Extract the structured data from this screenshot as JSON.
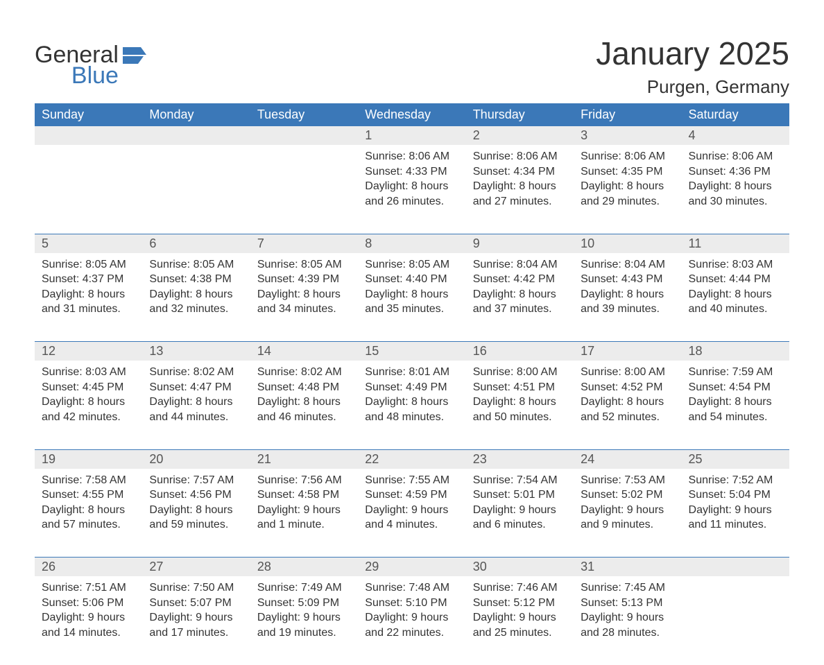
{
  "brand": {
    "line1": "General",
    "line2": "Blue"
  },
  "title": "January 2025",
  "location": "Purgen, Germany",
  "colors": {
    "header_bg": "#3b78b8",
    "header_text": "#ffffff",
    "daynum_bg": "#ececec",
    "daynum_text": "#555555",
    "body_text": "#333333",
    "rule": "#3b78b8",
    "page_bg": "#ffffff"
  },
  "fonts": {
    "title_size_pt": 34,
    "location_size_pt": 20,
    "header_size_pt": 14,
    "daynum_size_pt": 14,
    "body_size_pt": 12
  },
  "weekdays": [
    "Sunday",
    "Monday",
    "Tuesday",
    "Wednesday",
    "Thursday",
    "Friday",
    "Saturday"
  ],
  "weeks": [
    [
      null,
      null,
      null,
      {
        "n": "1",
        "sunrise": "Sunrise: 8:06 AM",
        "sunset": "Sunset: 4:33 PM",
        "d1": "Daylight: 8 hours",
        "d2": "and 26 minutes."
      },
      {
        "n": "2",
        "sunrise": "Sunrise: 8:06 AM",
        "sunset": "Sunset: 4:34 PM",
        "d1": "Daylight: 8 hours",
        "d2": "and 27 minutes."
      },
      {
        "n": "3",
        "sunrise": "Sunrise: 8:06 AM",
        "sunset": "Sunset: 4:35 PM",
        "d1": "Daylight: 8 hours",
        "d2": "and 29 minutes."
      },
      {
        "n": "4",
        "sunrise": "Sunrise: 8:06 AM",
        "sunset": "Sunset: 4:36 PM",
        "d1": "Daylight: 8 hours",
        "d2": "and 30 minutes."
      }
    ],
    [
      {
        "n": "5",
        "sunrise": "Sunrise: 8:05 AM",
        "sunset": "Sunset: 4:37 PM",
        "d1": "Daylight: 8 hours",
        "d2": "and 31 minutes."
      },
      {
        "n": "6",
        "sunrise": "Sunrise: 8:05 AM",
        "sunset": "Sunset: 4:38 PM",
        "d1": "Daylight: 8 hours",
        "d2": "and 32 minutes."
      },
      {
        "n": "7",
        "sunrise": "Sunrise: 8:05 AM",
        "sunset": "Sunset: 4:39 PM",
        "d1": "Daylight: 8 hours",
        "d2": "and 34 minutes."
      },
      {
        "n": "8",
        "sunrise": "Sunrise: 8:05 AM",
        "sunset": "Sunset: 4:40 PM",
        "d1": "Daylight: 8 hours",
        "d2": "and 35 minutes."
      },
      {
        "n": "9",
        "sunrise": "Sunrise: 8:04 AM",
        "sunset": "Sunset: 4:42 PM",
        "d1": "Daylight: 8 hours",
        "d2": "and 37 minutes."
      },
      {
        "n": "10",
        "sunrise": "Sunrise: 8:04 AM",
        "sunset": "Sunset: 4:43 PM",
        "d1": "Daylight: 8 hours",
        "d2": "and 39 minutes."
      },
      {
        "n": "11",
        "sunrise": "Sunrise: 8:03 AM",
        "sunset": "Sunset: 4:44 PM",
        "d1": "Daylight: 8 hours",
        "d2": "and 40 minutes."
      }
    ],
    [
      {
        "n": "12",
        "sunrise": "Sunrise: 8:03 AM",
        "sunset": "Sunset: 4:45 PM",
        "d1": "Daylight: 8 hours",
        "d2": "and 42 minutes."
      },
      {
        "n": "13",
        "sunrise": "Sunrise: 8:02 AM",
        "sunset": "Sunset: 4:47 PM",
        "d1": "Daylight: 8 hours",
        "d2": "and 44 minutes."
      },
      {
        "n": "14",
        "sunrise": "Sunrise: 8:02 AM",
        "sunset": "Sunset: 4:48 PM",
        "d1": "Daylight: 8 hours",
        "d2": "and 46 minutes."
      },
      {
        "n": "15",
        "sunrise": "Sunrise: 8:01 AM",
        "sunset": "Sunset: 4:49 PM",
        "d1": "Daylight: 8 hours",
        "d2": "and 48 minutes."
      },
      {
        "n": "16",
        "sunrise": "Sunrise: 8:00 AM",
        "sunset": "Sunset: 4:51 PM",
        "d1": "Daylight: 8 hours",
        "d2": "and 50 minutes."
      },
      {
        "n": "17",
        "sunrise": "Sunrise: 8:00 AM",
        "sunset": "Sunset: 4:52 PM",
        "d1": "Daylight: 8 hours",
        "d2": "and 52 minutes."
      },
      {
        "n": "18",
        "sunrise": "Sunrise: 7:59 AM",
        "sunset": "Sunset: 4:54 PM",
        "d1": "Daylight: 8 hours",
        "d2": "and 54 minutes."
      }
    ],
    [
      {
        "n": "19",
        "sunrise": "Sunrise: 7:58 AM",
        "sunset": "Sunset: 4:55 PM",
        "d1": "Daylight: 8 hours",
        "d2": "and 57 minutes."
      },
      {
        "n": "20",
        "sunrise": "Sunrise: 7:57 AM",
        "sunset": "Sunset: 4:56 PM",
        "d1": "Daylight: 8 hours",
        "d2": "and 59 minutes."
      },
      {
        "n": "21",
        "sunrise": "Sunrise: 7:56 AM",
        "sunset": "Sunset: 4:58 PM",
        "d1": "Daylight: 9 hours",
        "d2": "and 1 minute."
      },
      {
        "n": "22",
        "sunrise": "Sunrise: 7:55 AM",
        "sunset": "Sunset: 4:59 PM",
        "d1": "Daylight: 9 hours",
        "d2": "and 4 minutes."
      },
      {
        "n": "23",
        "sunrise": "Sunrise: 7:54 AM",
        "sunset": "Sunset: 5:01 PM",
        "d1": "Daylight: 9 hours",
        "d2": "and 6 minutes."
      },
      {
        "n": "24",
        "sunrise": "Sunrise: 7:53 AM",
        "sunset": "Sunset: 5:02 PM",
        "d1": "Daylight: 9 hours",
        "d2": "and 9 minutes."
      },
      {
        "n": "25",
        "sunrise": "Sunrise: 7:52 AM",
        "sunset": "Sunset: 5:04 PM",
        "d1": "Daylight: 9 hours",
        "d2": "and 11 minutes."
      }
    ],
    [
      {
        "n": "26",
        "sunrise": "Sunrise: 7:51 AM",
        "sunset": "Sunset: 5:06 PM",
        "d1": "Daylight: 9 hours",
        "d2": "and 14 minutes."
      },
      {
        "n": "27",
        "sunrise": "Sunrise: 7:50 AM",
        "sunset": "Sunset: 5:07 PM",
        "d1": "Daylight: 9 hours",
        "d2": "and 17 minutes."
      },
      {
        "n": "28",
        "sunrise": "Sunrise: 7:49 AM",
        "sunset": "Sunset: 5:09 PM",
        "d1": "Daylight: 9 hours",
        "d2": "and 19 minutes."
      },
      {
        "n": "29",
        "sunrise": "Sunrise: 7:48 AM",
        "sunset": "Sunset: 5:10 PM",
        "d1": "Daylight: 9 hours",
        "d2": "and 22 minutes."
      },
      {
        "n": "30",
        "sunrise": "Sunrise: 7:46 AM",
        "sunset": "Sunset: 5:12 PM",
        "d1": "Daylight: 9 hours",
        "d2": "and 25 minutes."
      },
      {
        "n": "31",
        "sunrise": "Sunrise: 7:45 AM",
        "sunset": "Sunset: 5:13 PM",
        "d1": "Daylight: 9 hours",
        "d2": "and 28 minutes."
      },
      null
    ]
  ]
}
